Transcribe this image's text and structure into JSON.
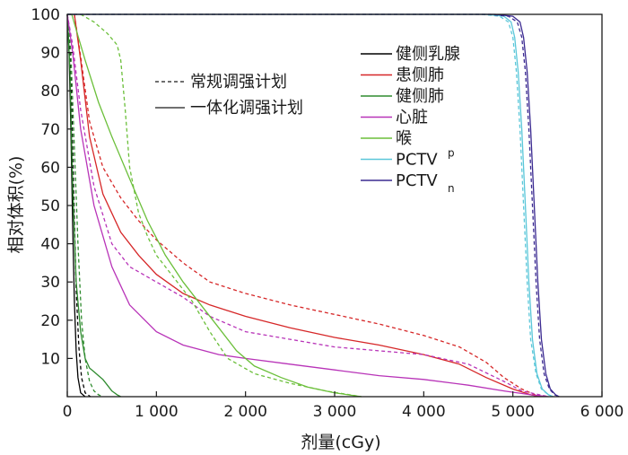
{
  "chart_data": {
    "type": "line",
    "xlabel": "剂量(cGy)",
    "ylabel": "相对体积(%)",
    "xlim": [
      0,
      6000
    ],
    "ylim": [
      0,
      100
    ],
    "x_ticks": [
      0,
      1000,
      2000,
      3000,
      4000,
      5000,
      6000
    ],
    "x_tick_labels": [
      "0",
      "1 000",
      "2 000",
      "3 000",
      "4 000",
      "5 000",
      "6 000"
    ],
    "y_ticks": [
      10,
      20,
      30,
      40,
      50,
      60,
      70,
      80,
      90,
      100
    ],
    "y_tick_labels": [
      "10",
      "20",
      "30",
      "40",
      "50",
      "60",
      "70",
      "80",
      "90",
      "100"
    ],
    "grid": false,
    "line_style_legend": [
      {
        "label": "常规调强计划",
        "style": "dashed"
      },
      {
        "label": "一体化调强计划",
        "style": "solid"
      }
    ],
    "series": [
      {
        "name": "健侧乳腺",
        "sub": "",
        "color": "#000000",
        "solid": [
          [
            0,
            100
          ],
          [
            20,
            90
          ],
          [
            40,
            70
          ],
          [
            60,
            45
          ],
          [
            80,
            25
          ],
          [
            100,
            12
          ],
          [
            120,
            5
          ],
          [
            150,
            1
          ],
          [
            200,
            0
          ]
        ],
        "dashed": [
          [
            0,
            100
          ],
          [
            25,
            92
          ],
          [
            50,
            75
          ],
          [
            75,
            50
          ],
          [
            100,
            28
          ],
          [
            130,
            13
          ],
          [
            160,
            5
          ],
          [
            200,
            1
          ],
          [
            260,
            0
          ]
        ]
      },
      {
        "name": "患侧肺",
        "sub": "",
        "color": "#d62728",
        "solid": [
          [
            80,
            100
          ],
          [
            150,
            88
          ],
          [
            250,
            68
          ],
          [
            400,
            53
          ],
          [
            600,
            43
          ],
          [
            800,
            37
          ],
          [
            1000,
            32
          ],
          [
            1300,
            27
          ],
          [
            1600,
            24
          ],
          [
            2000,
            21
          ],
          [
            2500,
            18
          ],
          [
            3000,
            15.5
          ],
          [
            3500,
            13.5
          ],
          [
            4000,
            11
          ],
          [
            4400,
            8.5
          ],
          [
            4700,
            5
          ],
          [
            5000,
            2
          ],
          [
            5200,
            0.5
          ],
          [
            5300,
            0
          ]
        ],
        "dashed": [
          [
            80,
            100
          ],
          [
            150,
            89
          ],
          [
            250,
            72
          ],
          [
            400,
            60
          ],
          [
            600,
            52
          ],
          [
            800,
            46
          ],
          [
            1000,
            41
          ],
          [
            1300,
            35
          ],
          [
            1600,
            30
          ],
          [
            2000,
            27
          ],
          [
            2500,
            24
          ],
          [
            3000,
            21.5
          ],
          [
            3500,
            19
          ],
          [
            4000,
            16
          ],
          [
            4400,
            13
          ],
          [
            4700,
            9
          ],
          [
            4900,
            5
          ],
          [
            5100,
            2
          ],
          [
            5250,
            0.5
          ],
          [
            5350,
            0
          ]
        ]
      },
      {
        "name": "健侧肺",
        "sub": "",
        "color": "#2e8b2e",
        "solid": [
          [
            0,
            100
          ],
          [
            30,
            85
          ],
          [
            60,
            55
          ],
          [
            100,
            30
          ],
          [
            150,
            17
          ],
          [
            200,
            10
          ],
          [
            250,
            7.5
          ],
          [
            300,
            6.5
          ],
          [
            350,
            5.5
          ],
          [
            400,
            4.5
          ],
          [
            450,
            3
          ],
          [
            500,
            1.5
          ],
          [
            560,
            0.5
          ],
          [
            600,
            0
          ]
        ],
        "dashed": [
          [
            0,
            100
          ],
          [
            40,
            90
          ],
          [
            80,
            65
          ],
          [
            120,
            40
          ],
          [
            160,
            20
          ],
          [
            200,
            10
          ],
          [
            250,
            4
          ],
          [
            300,
            1.5
          ],
          [
            350,
            0.5
          ],
          [
            400,
            0
          ]
        ]
      },
      {
        "name": "心脏",
        "sub": "",
        "color": "#b833b8",
        "solid": [
          [
            0,
            100
          ],
          [
            60,
            90
          ],
          [
            150,
            70
          ],
          [
            300,
            50
          ],
          [
            500,
            34
          ],
          [
            700,
            24
          ],
          [
            1000,
            17
          ],
          [
            1300,
            13.5
          ],
          [
            1700,
            11
          ],
          [
            2000,
            10
          ],
          [
            2500,
            8.5
          ],
          [
            3000,
            7
          ],
          [
            3500,
            5.5
          ],
          [
            4000,
            4.5
          ],
          [
            4500,
            3
          ],
          [
            4900,
            1.5
          ],
          [
            5200,
            0.5
          ],
          [
            5400,
            0
          ]
        ],
        "dashed": [
          [
            0,
            100
          ],
          [
            60,
            92
          ],
          [
            150,
            75
          ],
          [
            300,
            55
          ],
          [
            500,
            40
          ],
          [
            700,
            34
          ],
          [
            1000,
            30
          ],
          [
            1300,
            26
          ],
          [
            1600,
            21
          ],
          [
            2000,
            17
          ],
          [
            2500,
            15
          ],
          [
            3000,
            13
          ],
          [
            3500,
            12
          ],
          [
            4000,
            11
          ],
          [
            4500,
            8.5
          ],
          [
            4900,
            4
          ],
          [
            5100,
            1.5
          ],
          [
            5300,
            0.5
          ],
          [
            5400,
            0
          ]
        ]
      },
      {
        "name": "喉",
        "sub": "",
        "color": "#6bbf3a",
        "solid": [
          [
            50,
            100
          ],
          [
            100,
            96
          ],
          [
            200,
            88
          ],
          [
            350,
            77
          ],
          [
            500,
            68
          ],
          [
            700,
            57
          ],
          [
            900,
            46
          ],
          [
            1100,
            37
          ],
          [
            1300,
            30
          ],
          [
            1500,
            24
          ],
          [
            1700,
            18
          ],
          [
            1900,
            12
          ],
          [
            2100,
            8
          ],
          [
            2400,
            5
          ],
          [
            2700,
            2.5
          ],
          [
            3000,
            1
          ],
          [
            3300,
            0
          ]
        ],
        "dashed": [
          [
            150,
            100
          ],
          [
            300,
            98
          ],
          [
            450,
            95
          ],
          [
            560,
            92
          ],
          [
            600,
            88
          ],
          [
            650,
            75
          ],
          [
            700,
            60
          ],
          [
            800,
            48
          ],
          [
            900,
            42
          ],
          [
            1000,
            37
          ],
          [
            1200,
            31
          ],
          [
            1400,
            25
          ],
          [
            1600,
            17
          ],
          [
            1800,
            10
          ],
          [
            2100,
            6
          ],
          [
            2500,
            3.5
          ],
          [
            2900,
            1.5
          ],
          [
            3300,
            0
          ]
        ]
      },
      {
        "name": "PCTV",
        "sub": "p",
        "color": "#5bc7d9",
        "solid": [
          [
            0,
            100
          ],
          [
            4700,
            100
          ],
          [
            4900,
            99.5
          ],
          [
            4980,
            98
          ],
          [
            5020,
            94
          ],
          [
            5060,
            85
          ],
          [
            5100,
            70
          ],
          [
            5140,
            50
          ],
          [
            5180,
            30
          ],
          [
            5220,
            15
          ],
          [
            5270,
            6
          ],
          [
            5330,
            2
          ],
          [
            5400,
            0.5
          ],
          [
            5450,
            0
          ]
        ],
        "dashed": [
          [
            0,
            100
          ],
          [
            4650,
            100
          ],
          [
            4850,
            99.5
          ],
          [
            4950,
            98
          ],
          [
            5000,
            94
          ],
          [
            5040,
            85
          ],
          [
            5080,
            70
          ],
          [
            5120,
            50
          ],
          [
            5160,
            30
          ],
          [
            5200,
            15
          ],
          [
            5260,
            6
          ],
          [
            5320,
            2
          ],
          [
            5400,
            0.5
          ],
          [
            5450,
            0
          ]
        ]
      },
      {
        "name": "PCTV",
        "sub": "n",
        "color": "#3b2a91",
        "solid": [
          [
            0,
            100
          ],
          [
            4800,
            100
          ],
          [
            5000,
            99.5
          ],
          [
            5080,
            98
          ],
          [
            5120,
            94
          ],
          [
            5160,
            85
          ],
          [
            5200,
            70
          ],
          [
            5240,
            50
          ],
          [
            5280,
            30
          ],
          [
            5320,
            15
          ],
          [
            5370,
            6
          ],
          [
            5420,
            2
          ],
          [
            5480,
            0.5
          ],
          [
            5520,
            0
          ]
        ],
        "dashed": [
          [
            0,
            100
          ],
          [
            4750,
            100
          ],
          [
            4950,
            99.5
          ],
          [
            5050,
            98
          ],
          [
            5100,
            94
          ],
          [
            5140,
            85
          ],
          [
            5180,
            70
          ],
          [
            5220,
            50
          ],
          [
            5260,
            30
          ],
          [
            5300,
            15
          ],
          [
            5350,
            6
          ],
          [
            5410,
            2
          ],
          [
            5470,
            0.5
          ],
          [
            5520,
            0
          ]
        ]
      }
    ]
  }
}
